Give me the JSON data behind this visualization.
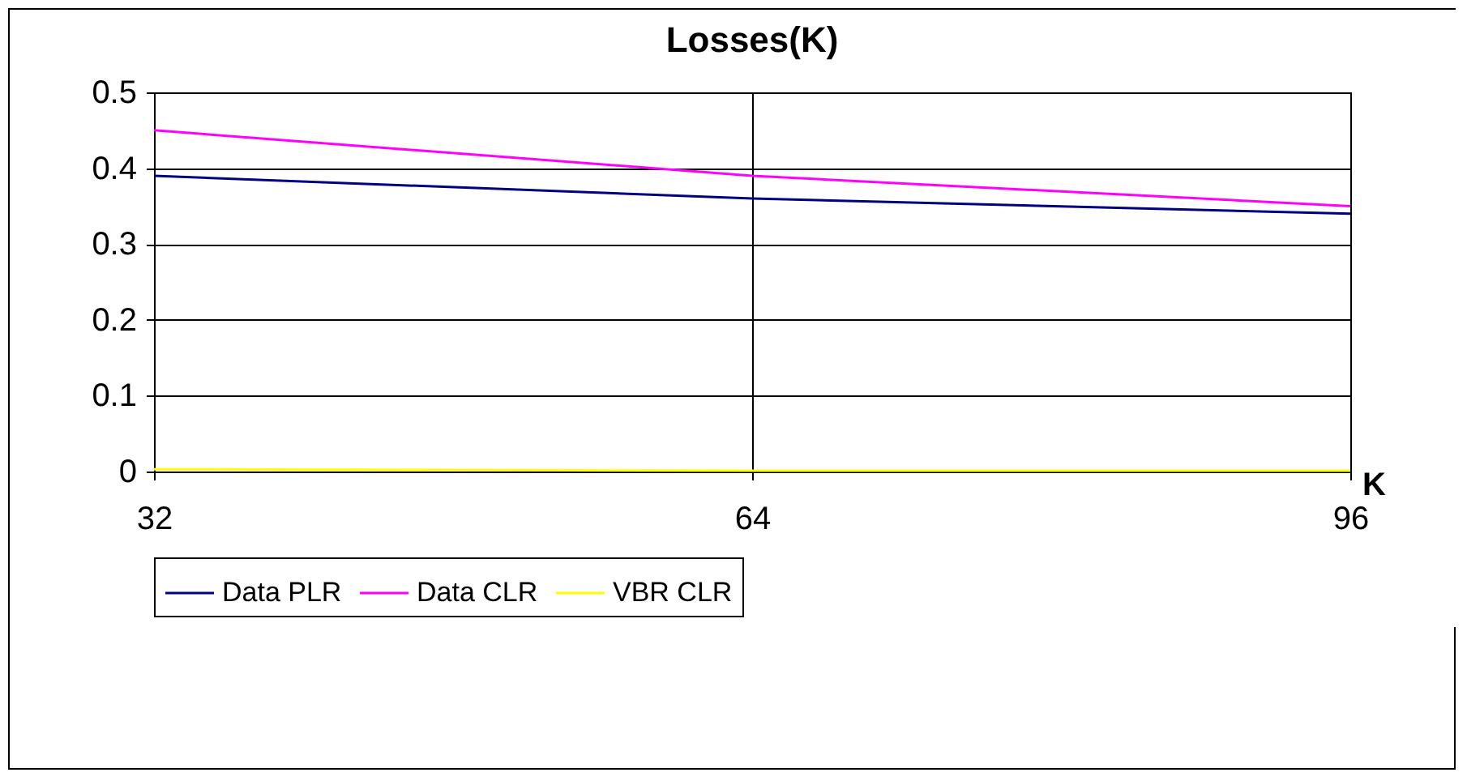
{
  "chart_data": {
    "type": "line",
    "title": "Losses(K)",
    "xlabel": "K",
    "x": [
      32,
      64,
      96
    ],
    "xlim": [
      32,
      96
    ],
    "xticks": [
      32,
      64,
      96
    ],
    "ylim": [
      0,
      0.5
    ],
    "yticks": [
      0,
      0.1,
      0.2,
      0.3,
      0.4,
      0.5
    ],
    "series": [
      {
        "name": "Data PLR",
        "color": "#000080",
        "values": [
          0.39,
          0.36,
          0.34
        ]
      },
      {
        "name": "Data CLR",
        "color": "#ff00ff",
        "values": [
          0.45,
          0.39,
          0.35
        ]
      },
      {
        "name": "VBR CLR",
        "color": "#ffff00",
        "values": [
          0.003,
          0.001,
          0.001
        ]
      }
    ],
    "grid": true,
    "legend": "bottom",
    "marker": "none",
    "line_style": "solid"
  }
}
